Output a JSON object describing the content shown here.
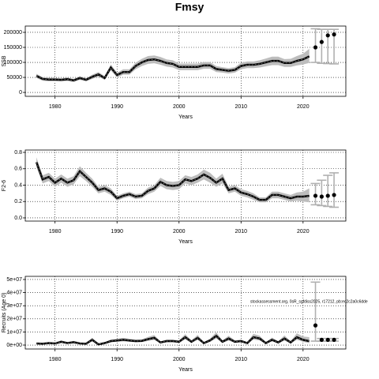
{
  "title": "Fmsy",
  "chart_data": [
    {
      "type": "line",
      "y_label": "SSB",
      "x_label": "Years",
      "grid": true,
      "color": "#000000",
      "band_color": "#bdbdbd",
      "xlim": [
        1975.2,
        2026.9
      ],
      "xticks": [
        1980,
        1990,
        2000,
        2010,
        2020
      ],
      "ylim": [
        -13000,
        221000
      ],
      "yticks": [
        0,
        50000,
        100000,
        150000,
        200000
      ],
      "x": [
        1977,
        1978,
        1979,
        1980,
        1981,
        1982,
        1983,
        1984,
        1985,
        1986,
        1987,
        1988,
        1989,
        1990,
        1991,
        1992,
        1993,
        1994,
        1995,
        1996,
        1997,
        1998,
        1999,
        2000,
        2001,
        2002,
        2003,
        2004,
        2005,
        2006,
        2007,
        2008,
        2009,
        2010,
        2011,
        2012,
        2013,
        2014,
        2015,
        2016,
        2017,
        2018,
        2019,
        2020,
        2021
      ],
      "values": [
        55000,
        45000,
        43000,
        43000,
        42000,
        44000,
        40000,
        48000,
        42000,
        52000,
        60000,
        48000,
        83000,
        58000,
        68000,
        68000,
        88000,
        100000,
        108000,
        110000,
        105000,
        98000,
        95000,
        85000,
        85000,
        85000,
        85000,
        90000,
        90000,
        78000,
        75000,
        72000,
        75000,
        88000,
        92000,
        92000,
        95000,
        100000,
        105000,
        105000,
        98000,
        98000,
        105000,
        110000,
        120000
      ],
      "low": [
        48000,
        39000,
        37000,
        37000,
        37000,
        38000,
        35000,
        42000,
        37000,
        45000,
        52000,
        42000,
        73000,
        50000,
        59000,
        59000,
        77000,
        88000,
        95000,
        97000,
        92000,
        86000,
        83000,
        74000,
        74000,
        74000,
        74000,
        79000,
        79000,
        68000,
        66000,
        63000,
        66000,
        77000,
        81000,
        81000,
        83000,
        87000,
        91000,
        91000,
        85000,
        85000,
        90000,
        93000,
        98000
      ],
      "high": [
        62000,
        51000,
        49000,
        49000,
        47000,
        50000,
        45000,
        54000,
        47000,
        59000,
        68000,
        54000,
        93000,
        66000,
        77000,
        77000,
        99000,
        112000,
        121000,
        123000,
        118000,
        110000,
        107000,
        96000,
        96000,
        96000,
        96000,
        101000,
        101000,
        88000,
        84000,
        81000,
        84000,
        99000,
        103000,
        103000,
        107000,
        113000,
        119000,
        119000,
        111000,
        112000,
        121000,
        129000,
        145000
      ],
      "forecast_x": [
        2022,
        2023,
        2024,
        2025
      ],
      "forecast_values": [
        150000,
        168000,
        190000,
        193000
      ],
      "forecast_low": [
        100000,
        97000,
        96000,
        95000
      ],
      "forecast_high": [
        212000,
        210000,
        210000,
        210000
      ]
    },
    {
      "type": "line",
      "y_label": "F2-6",
      "x_label": "Years",
      "grid": true,
      "color": "#000000",
      "band_color": "#bdbdbd",
      "xlim": [
        1975.2,
        2026.9
      ],
      "xticks": [
        1980,
        1990,
        2000,
        2010,
        2020
      ],
      "ylim": [
        -0.039,
        0.829
      ],
      "yticks": [
        {
          "value": 0,
          "label": "0.0"
        },
        0.2,
        0.4,
        0.6,
        0.8
      ],
      "x": [
        1977,
        1978,
        1979,
        1980,
        1981,
        1982,
        1983,
        1984,
        1985,
        1986,
        1987,
        1988,
        1989,
        1990,
        1991,
        1992,
        1993,
        1994,
        1995,
        1996,
        1997,
        1998,
        1999,
        2000,
        2001,
        2002,
        2003,
        2004,
        2005,
        2006,
        2007,
        2008,
        2009,
        2010,
        2011,
        2012,
        2013,
        2014,
        2015,
        2016,
        2017,
        2018,
        2019,
        2020,
        2021
      ],
      "values": [
        0.68,
        0.47,
        0.5,
        0.43,
        0.48,
        0.43,
        0.46,
        0.57,
        0.5,
        0.43,
        0.34,
        0.36,
        0.32,
        0.24,
        0.27,
        0.29,
        0.26,
        0.27,
        0.33,
        0.36,
        0.44,
        0.4,
        0.39,
        0.4,
        0.47,
        0.45,
        0.48,
        0.53,
        0.49,
        0.43,
        0.48,
        0.34,
        0.36,
        0.31,
        0.29,
        0.26,
        0.22,
        0.22,
        0.28,
        0.28,
        0.26,
        0.24,
        0.26,
        0.26,
        0.27
      ],
      "low": [
        0.62,
        0.42,
        0.45,
        0.38,
        0.43,
        0.38,
        0.41,
        0.51,
        0.45,
        0.38,
        0.3,
        0.32,
        0.28,
        0.21,
        0.24,
        0.26,
        0.23,
        0.24,
        0.29,
        0.32,
        0.39,
        0.35,
        0.34,
        0.35,
        0.42,
        0.4,
        0.43,
        0.47,
        0.43,
        0.38,
        0.42,
        0.3,
        0.32,
        0.27,
        0.25,
        0.22,
        0.19,
        0.19,
        0.24,
        0.24,
        0.22,
        0.2,
        0.21,
        0.2,
        0.19
      ],
      "high": [
        0.74,
        0.52,
        0.55,
        0.48,
        0.53,
        0.48,
        0.51,
        0.63,
        0.55,
        0.48,
        0.38,
        0.4,
        0.36,
        0.27,
        0.3,
        0.32,
        0.29,
        0.3,
        0.37,
        0.4,
        0.49,
        0.45,
        0.44,
        0.45,
        0.52,
        0.5,
        0.53,
        0.59,
        0.55,
        0.48,
        0.54,
        0.38,
        0.4,
        0.35,
        0.33,
        0.3,
        0.25,
        0.25,
        0.32,
        0.32,
        0.3,
        0.28,
        0.31,
        0.32,
        0.36
      ],
      "forecast_x": [
        2022,
        2023,
        2024,
        2025
      ],
      "forecast_values": [
        0.27,
        0.26,
        0.27,
        0.28
      ],
      "forecast_low": [
        0.16,
        0.15,
        0.14,
        0.13
      ],
      "forecast_high": [
        0.42,
        0.46,
        0.52,
        0.55
      ]
    },
    {
      "type": "line",
      "y_label": "Recruits (Age 0)",
      "x_label": "Years",
      "grid": true,
      "color": "#000000",
      "band_color": "#bdbdbd",
      "annotation": "stockassessment.org, 0sR_sgfdiss2025, r17212, pb:ec2c2a0c6dde",
      "xlim": [
        1975.2,
        2026.9
      ],
      "xticks": [
        1980,
        1990,
        2000,
        2010,
        2020
      ],
      "ylim": [
        -3000000,
        52400000
      ],
      "yticks": [
        {
          "value": 0,
          "label": "0e+00"
        },
        {
          "value": 10000000,
          "label": "1e+07"
        },
        {
          "value": 20000000,
          "label": "2e+07"
        },
        {
          "value": 30000000,
          "label": "3e+07"
        },
        {
          "value": 40000000,
          "label": "4e+07"
        },
        {
          "value": 50000000,
          "label": "5e+07"
        }
      ],
      "x": [
        1977,
        1978,
        1979,
        1980,
        1981,
        1982,
        1983,
        1984,
        1985,
        1986,
        1987,
        1988,
        1989,
        1990,
        1991,
        1992,
        1993,
        1994,
        1995,
        1996,
        1997,
        1998,
        1999,
        2000,
        2001,
        2002,
        2003,
        2004,
        2005,
        2006,
        2007,
        2008,
        2009,
        2010,
        2011,
        2012,
        2013,
        2014,
        2015,
        2016,
        2017,
        2018,
        2019,
        2020,
        2021
      ],
      "values": [
        1200000.0,
        1000000.0,
        1500000.0,
        1200000.0,
        2500000.0,
        1500000.0,
        2200000.0,
        1200000.0,
        1000000.0,
        4000000.0,
        500000.0,
        1500000.0,
        3000000.0,
        3500000.0,
        4000000.0,
        3500000.0,
        3000000.0,
        3200000.0,
        4500000.0,
        5500000.0,
        2000000.0,
        3000000.0,
        3000000.0,
        2500000.0,
        6000000.0,
        2500000.0,
        5500000.0,
        1500000.0,
        3500000.0,
        7000000.0,
        2500000.0,
        5000000.0,
        2500000.0,
        3000000.0,
        1500000.0,
        6000000.0,
        5000000.0,
        1500000.0,
        4000000.0,
        2000000.0,
        5000000.0,
        2000000.0,
        6000000.0,
        4000000.0,
        3000000.0
      ],
      "low": [
        800000.0,
        600000.0,
        1000000.0,
        800000.0,
        1700000.0,
        1000000.0,
        1500000.0,
        800000.0,
        600000.0,
        2800000.0,
        300000.0,
        1000000.0,
        2100000.0,
        2500000.0,
        2900000.0,
        2500000.0,
        2100000.0,
        2300000.0,
        3200000.0,
        3900000.0,
        1400000.0,
        2100000.0,
        2100000.0,
        1700000.0,
        4300000.0,
        1700000.0,
        3900000.0,
        1000000.0,
        2400000.0,
        5000000.0,
        1700000.0,
        3500000.0,
        1700000.0,
        2100000.0,
        1000000.0,
        4200000.0,
        3500000.0,
        1000000.0,
        2800000.0,
        1300000.0,
        3400000.0,
        1300000.0,
        4000000.0,
        2500000.0,
        1500000.0
      ],
      "high": [
        1800000.0,
        1600000.0,
        2200000.0,
        1800000.0,
        3600000.0,
        2200000.0,
        3200000.0,
        1800000.0,
        1600000.0,
        5600000.0,
        900000.0,
        2200000.0,
        4200000.0,
        4800000.0,
        5500000.0,
        4800000.0,
        4200000.0,
        4400000.0,
        6200000.0,
        7600000.0,
        2800000.0,
        4200000.0,
        4200000.0,
        3600000.0,
        8300000.0,
        3600000.0,
        7700000.0,
        2200000.0,
        4900000.0,
        9800000.0,
        3600000.0,
        7100000.0,
        3600000.0,
        4200000.0,
        2200000.0,
        8500000.0,
        7100000.0,
        2200000.0,
        5700000.0,
        3000000.0,
        7300000.0,
        3000000.0,
        9000000.0,
        6500000.0,
        6000000.0
      ],
      "forecast_x": [
        2022,
        2023,
        2024,
        2025
      ],
      "forecast_values": [
        15000000,
        4000000,
        4000000,
        4000000
      ],
      "forecast_low": [
        3000000,
        3000000,
        3000000,
        3000000
      ],
      "forecast_high": [
        48000000,
        5000000,
        5000000,
        5000000
      ]
    }
  ]
}
